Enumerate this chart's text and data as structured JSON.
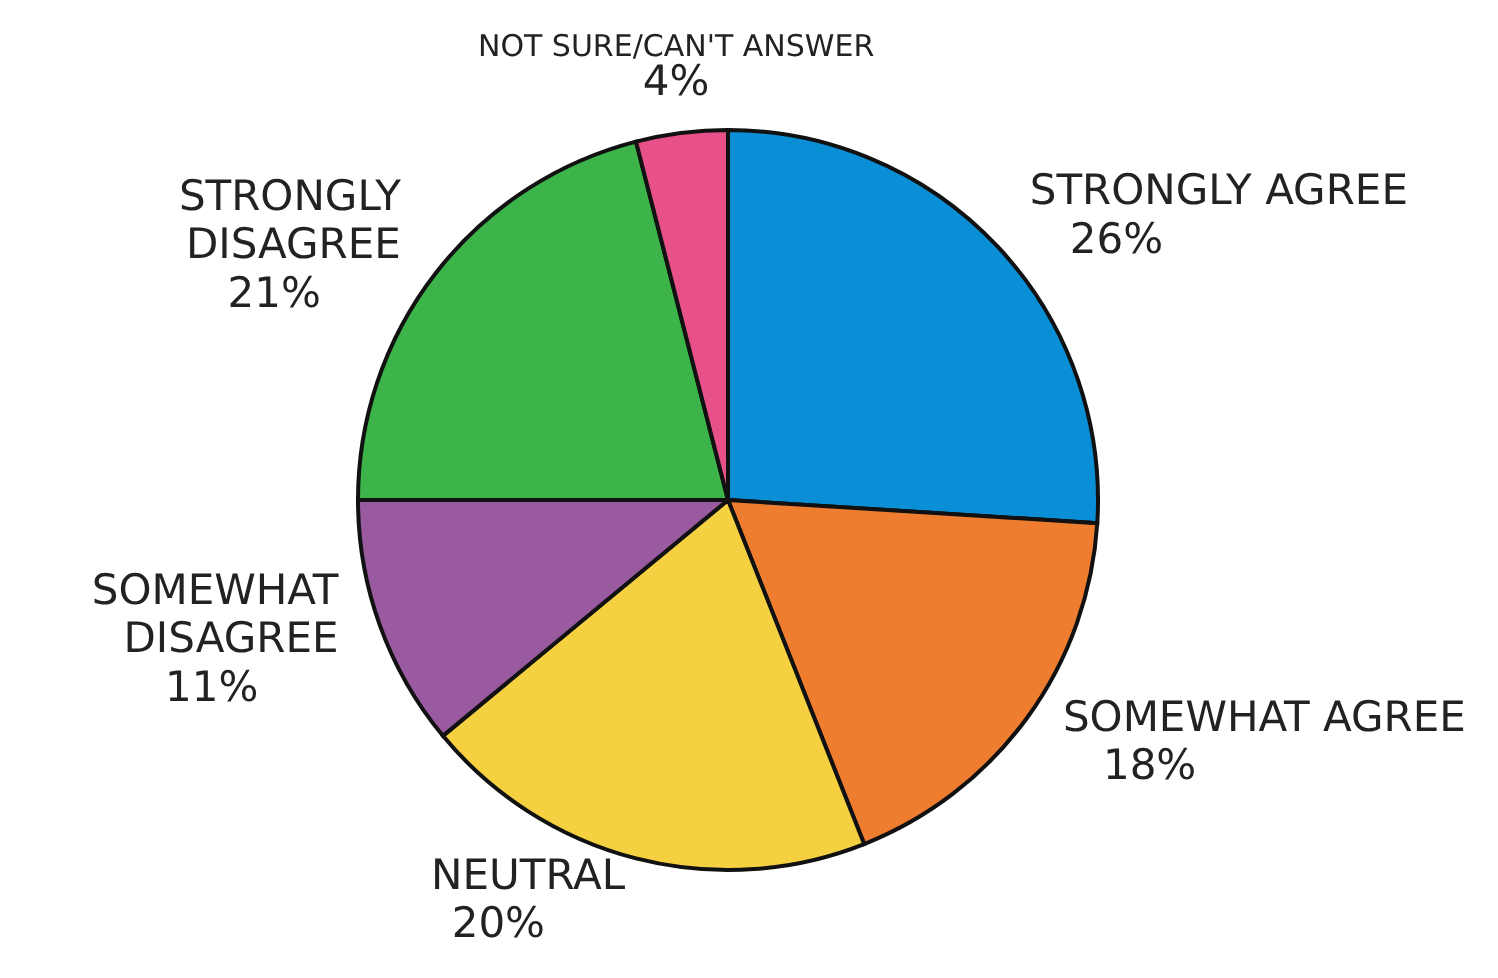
{
  "chart_data": {
    "type": "pie",
    "categories": [
      "STRONGLY AGREE",
      "SOMEWHAT AGREE",
      "NEUTRAL",
      "SOMEWHAT DISAGREE",
      "STRONGLY DISAGREE",
      "NOT SURE/CAN'T ANSWER"
    ],
    "values": [
      26,
      18,
      20,
      11,
      21,
      4
    ],
    "colors": [
      "#0a8fd6",
      "#ef7d2f",
      "#f5d040",
      "#9a5aa0",
      "#3cb44a",
      "#e8508a"
    ],
    "value_labels": [
      "26%",
      "18%",
      "20%",
      "11%",
      "21%",
      "4%"
    ],
    "legend": false
  }
}
